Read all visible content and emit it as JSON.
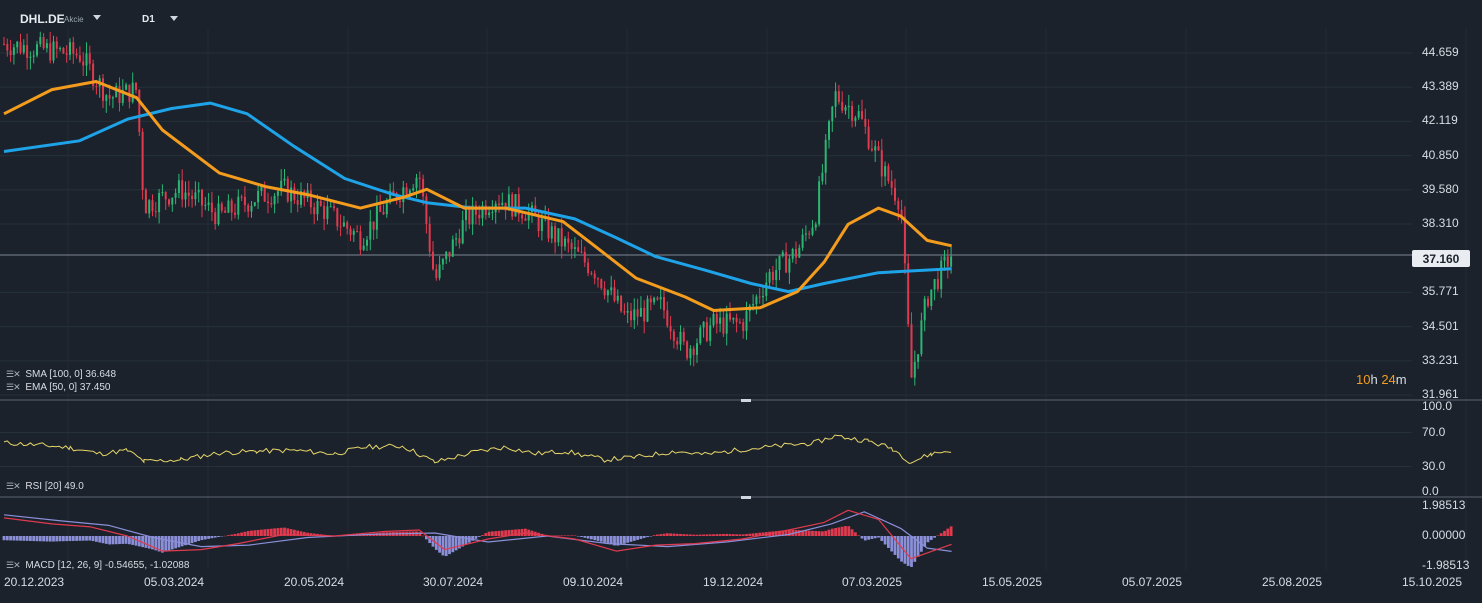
{
  "header": {
    "symbol": "DHL.DE",
    "instrument_type": "Akcie",
    "timeframe": "D1"
  },
  "indicators": {
    "sma_label": "SMA [100, 0] 36.648",
    "ema_label": "EMA [50, 0] 37.450",
    "rsi_label": "RSI [20] 49.0",
    "macd_label": "MACD [12, 26, 9] -0.54655, -1.02088"
  },
  "countdown": {
    "hours": "10",
    "h_unit": "h",
    "minutes": "24",
    "m_unit": "m"
  },
  "current_price": "37.160",
  "colors": {
    "background": "#1b222b",
    "candle_up": "#2bb673",
    "candle_down": "#e03a4e",
    "ema": "#f39c1e",
    "sma": "#1fa3e8",
    "rsi": "#e8d66a",
    "macd_line": "#e03a4e",
    "signal_line": "#8a8fd8",
    "hist_pos": "#e03a4e",
    "hist_neg": "#8a8fd8"
  },
  "chart_data": [
    {
      "type": "candlestick",
      "title": "",
      "x_tick_labels": [
        "20.12.2023",
        "05.03.2024",
        "20.05.2024",
        "30.07.2024",
        "09.10.2024",
        "19.12.2024",
        "07.03.2025",
        "15.05.2025",
        "05.07.2025",
        "25.08.2025",
        "15.10.2025"
      ],
      "y_tick_labels": [
        "44.659",
        "43.389",
        "42.119",
        "40.850",
        "39.580",
        "38.310",
        "35.771",
        "34.501",
        "33.231",
        "31.961"
      ],
      "ylim": [
        31.961,
        45.2
      ],
      "grid": true,
      "anchors": [
        [
          "2023-12-20",
          45.0
        ],
        [
          "2024-01-10",
          44.8
        ],
        [
          "2024-01-30",
          44.6
        ],
        [
          "2024-02-15",
          43.0
        ],
        [
          "2024-03-01",
          43.3
        ],
        [
          "2024-03-05",
          39.0
        ],
        [
          "2024-03-25",
          39.6
        ],
        [
          "2024-04-15",
          38.6
        ],
        [
          "2024-05-05",
          39.3
        ],
        [
          "2024-05-20",
          39.6
        ],
        [
          "2024-06-10",
          38.8
        ],
        [
          "2024-06-28",
          37.8
        ],
        [
          "2024-07-15",
          39.3
        ],
        [
          "2024-07-28",
          40.2
        ],
        [
          "2024-08-05",
          36.2
        ],
        [
          "2024-08-20",
          38.4
        ],
        [
          "2024-09-05",
          39.3
        ],
        [
          "2024-09-20",
          38.8
        ],
        [
          "2024-10-09",
          37.6
        ],
        [
          "2024-10-25",
          36.6
        ],
        [
          "2024-11-10",
          34.8
        ],
        [
          "2024-11-28",
          35.3
        ],
        [
          "2024-12-10",
          33.6
        ],
        [
          "2024-12-25",
          34.6
        ],
        [
          "2025-01-10",
          34.6
        ],
        [
          "2025-01-25",
          36.4
        ],
        [
          "2025-02-10",
          37.3
        ],
        [
          "2025-02-20",
          38.6
        ],
        [
          "2025-03-03",
          43.1
        ],
        [
          "2025-03-15",
          42.4
        ],
        [
          "2025-03-28",
          40.2
        ],
        [
          "2025-04-05",
          39.1
        ],
        [
          "2025-04-10",
          32.5
        ],
        [
          "2025-04-18",
          35.6
        ],
        [
          "2025-04-30",
          37.2
        ]
      ],
      "ema_50": {
        "label": "EMA [50, 0] 37.450",
        "points": [
          [
            "2023-12-20",
            42.4
          ],
          [
            "2024-01-15",
            43.3
          ],
          [
            "2024-02-08",
            43.6
          ],
          [
            "2024-03-01",
            43.0
          ],
          [
            "2024-03-15",
            41.8
          ],
          [
            "2024-04-15",
            40.2
          ],
          [
            "2024-05-10",
            39.7
          ],
          [
            "2024-06-01",
            39.4
          ],
          [
            "2024-06-28",
            38.9
          ],
          [
            "2024-07-20",
            39.3
          ],
          [
            "2024-08-01",
            39.6
          ],
          [
            "2024-08-20",
            38.9
          ],
          [
            "2024-09-10",
            38.9
          ],
          [
            "2024-10-09",
            38.4
          ],
          [
            "2024-10-25",
            37.5
          ],
          [
            "2024-11-15",
            36.3
          ],
          [
            "2024-12-10",
            35.6
          ],
          [
            "2024-12-25",
            35.1
          ],
          [
            "2025-01-20",
            35.2
          ],
          [
            "2025-02-10",
            35.8
          ],
          [
            "2025-02-25",
            36.9
          ],
          [
            "2025-03-10",
            38.3
          ],
          [
            "2025-03-25",
            38.9
          ],
          [
            "2025-04-05",
            38.6
          ],
          [
            "2025-04-18",
            37.7
          ],
          [
            "2025-04-30",
            37.5
          ]
        ]
      },
      "sma_100": {
        "label": "SMA [100, 0] 36.648",
        "points": [
          [
            "2023-12-20",
            41.0
          ],
          [
            "2024-01-30",
            41.4
          ],
          [
            "2024-02-25",
            42.2
          ],
          [
            "2024-03-20",
            42.6
          ],
          [
            "2024-04-10",
            42.8
          ],
          [
            "2024-04-30",
            42.4
          ],
          [
            "2024-05-25",
            41.2
          ],
          [
            "2024-06-20",
            40.0
          ],
          [
            "2024-07-15",
            39.4
          ],
          [
            "2024-08-01",
            39.1
          ],
          [
            "2024-08-25",
            38.9
          ],
          [
            "2024-09-20",
            38.9
          ],
          [
            "2024-10-15",
            38.5
          ],
          [
            "2024-11-05",
            37.8
          ],
          [
            "2024-11-25",
            37.1
          ],
          [
            "2024-12-20",
            36.6
          ],
          [
            "2025-01-15",
            36.1
          ],
          [
            "2025-02-05",
            35.8
          ],
          [
            "2025-02-25",
            36.1
          ],
          [
            "2025-03-25",
            36.5
          ],
          [
            "2025-04-30",
            36.65
          ]
        ]
      }
    },
    {
      "type": "line",
      "title": "RSI [20] 49.0",
      "y_tick_labels": [
        "100.0",
        "70.0",
        "30.0",
        "0.0"
      ],
      "ylim": [
        0,
        100
      ],
      "series": [
        {
          "name": "RSI [20]",
          "points": [
            [
              "2023-12-20",
              58
            ],
            [
              "2024-01-10",
              55
            ],
            [
              "2024-01-25",
              52
            ],
            [
              "2024-02-10",
              45
            ],
            [
              "2024-02-25",
              49
            ],
            [
              "2024-03-05",
              36
            ],
            [
              "2024-03-25",
              38
            ],
            [
              "2024-04-15",
              46
            ],
            [
              "2024-05-05",
              48
            ],
            [
              "2024-05-25",
              49
            ],
            [
              "2024-06-15",
              45
            ],
            [
              "2024-07-01",
              53
            ],
            [
              "2024-07-20",
              54
            ],
            [
              "2024-08-05",
              35
            ],
            [
              "2024-08-25",
              47
            ],
            [
              "2024-09-10",
              53
            ],
            [
              "2024-09-25",
              45
            ],
            [
              "2024-10-10",
              48
            ],
            [
              "2024-10-30",
              38
            ],
            [
              "2024-11-15",
              41
            ],
            [
              "2024-12-05",
              48
            ],
            [
              "2024-12-20",
              44
            ],
            [
              "2025-01-10",
              50
            ],
            [
              "2025-01-30",
              54
            ],
            [
              "2025-02-20",
              58
            ],
            [
              "2025-03-03",
              66
            ],
            [
              "2025-03-20",
              60
            ],
            [
              "2025-04-01",
              51
            ],
            [
              "2025-04-10",
              35
            ],
            [
              "2025-04-20",
              45
            ],
            [
              "2025-04-30",
              49
            ]
          ]
        }
      ]
    },
    {
      "type": "bar",
      "title": "MACD [12, 26, 9] -0.54655, -1.02088",
      "y_tick_labels": [
        "1.98513",
        "0.00000",
        "-1.98513"
      ],
      "ylim": [
        -1.98513,
        1.98513
      ],
      "series": [
        {
          "name": "MACD",
          "points": [
            [
              "2023-12-20",
              1.2
            ],
            [
              "2024-01-15",
              0.8
            ],
            [
              "2024-02-05",
              0.6
            ],
            [
              "2024-02-25",
              0.0
            ],
            [
              "2024-03-15",
              -1.0
            ],
            [
              "2024-04-05",
              -0.9
            ],
            [
              "2024-04-25",
              -0.5
            ],
            [
              "2024-05-20",
              0.1
            ],
            [
              "2024-06-15",
              0.0
            ],
            [
              "2024-07-10",
              0.3
            ],
            [
              "2024-07-28",
              0.4
            ],
            [
              "2024-08-10",
              -0.9
            ],
            [
              "2024-09-01",
              -0.2
            ],
            [
              "2024-09-20",
              0.2
            ],
            [
              "2024-10-15",
              -0.2
            ],
            [
              "2024-11-05",
              -1.0
            ],
            [
              "2024-11-25",
              -0.6
            ],
            [
              "2024-12-15",
              -0.5
            ],
            [
              "2025-01-10",
              -0.2
            ],
            [
              "2025-02-01",
              0.3
            ],
            [
              "2025-02-25",
              0.9
            ],
            [
              "2025-03-10",
              1.7
            ],
            [
              "2025-03-25",
              1.1
            ],
            [
              "2025-04-10",
              -1.5
            ],
            [
              "2025-04-30",
              -0.55
            ]
          ]
        },
        {
          "name": "Signal",
          "points": [
            [
              "2023-12-20",
              1.4
            ],
            [
              "2024-01-20",
              1.0
            ],
            [
              "2024-02-15",
              0.7
            ],
            [
              "2024-03-10",
              -0.1
            ],
            [
              "2024-04-05",
              -0.7
            ],
            [
              "2024-05-01",
              -0.6
            ],
            [
              "2024-06-01",
              -0.1
            ],
            [
              "2024-07-01",
              0.1
            ],
            [
              "2024-08-05",
              0.2
            ],
            [
              "2024-09-01",
              -0.4
            ],
            [
              "2024-10-01",
              0.0
            ],
            [
              "2024-11-01",
              -0.5
            ],
            [
              "2024-12-01",
              -0.7
            ],
            [
              "2025-01-01",
              -0.4
            ],
            [
              "2025-02-05",
              0.1
            ],
            [
              "2025-03-01",
              0.8
            ],
            [
              "2025-03-18",
              1.6
            ],
            [
              "2025-04-05",
              0.5
            ],
            [
              "2025-04-18",
              -0.8
            ],
            [
              "2025-04-30",
              -1.02
            ]
          ]
        }
      ]
    }
  ]
}
